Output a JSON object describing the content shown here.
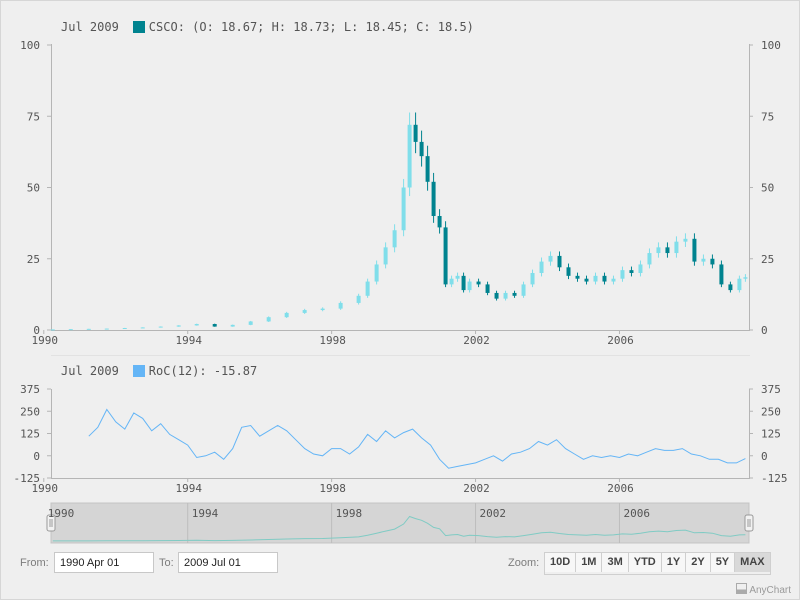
{
  "price_legend": {
    "date": "Jul 2009",
    "label": "CSCO: (O: 18.67; H: 18.73; L: 18.45; C: 18.5)",
    "color": "#00838f"
  },
  "roc_legend": {
    "date": "Jul 2009",
    "label": "RoC(12): -15.87",
    "color": "#64b5f6"
  },
  "scroller": {
    "labels": [
      "1990",
      "1994",
      "1998",
      "2002",
      "2006"
    ]
  },
  "range": {
    "from_label": "From:",
    "from_value": "1990 Apr 01",
    "to_label": "To:",
    "to_value": "2009 Jul 01"
  },
  "zoom": {
    "label": "Zoom:",
    "buttons": [
      "10D",
      "1M",
      "3M",
      "YTD",
      "1Y",
      "2Y",
      "5Y",
      "MAX"
    ],
    "active": "MAX"
  },
  "credits": "AnyChart",
  "chart_data": [
    {
      "type": "candlestick",
      "series": [
        {
          "name": "CSCO",
          "color_up": "#80deea",
          "color_down": "#00838f"
        }
      ],
      "x_ticks": [
        "1990",
        "1994",
        "1998",
        "2002",
        "2006"
      ],
      "y_ticks": [
        "0",
        "25",
        "50",
        "75",
        "100"
      ],
      "ylim": [
        0,
        100
      ],
      "x": [
        "1990-04",
        "1990-10",
        "1991-04",
        "1991-10",
        "1992-04",
        "1992-10",
        "1993-04",
        "1993-10",
        "1994-04",
        "1994-10",
        "1995-04",
        "1995-10",
        "1996-04",
        "1996-10",
        "1997-04",
        "1997-10",
        "1998-04",
        "1998-10",
        "1999-01",
        "1999-04",
        "1999-07",
        "1999-10",
        "2000-01",
        "2000-03",
        "2000-05",
        "2000-07",
        "2000-09",
        "2000-11",
        "2001-01",
        "2001-03",
        "2001-05",
        "2001-07",
        "2001-09",
        "2001-11",
        "2002-02",
        "2002-05",
        "2002-08",
        "2002-11",
        "2003-02",
        "2003-05",
        "2003-08",
        "2003-11",
        "2004-02",
        "2004-05",
        "2004-08",
        "2004-11",
        "2005-02",
        "2005-05",
        "2005-08",
        "2005-11",
        "2006-02",
        "2006-05",
        "2006-08",
        "2006-11",
        "2007-02",
        "2007-05",
        "2007-08",
        "2007-11",
        "2008-02",
        "2008-05",
        "2008-08",
        "2008-11",
        "2009-02",
        "2009-05",
        "2009-07"
      ],
      "close": [
        0.2,
        0.3,
        0.4,
        0.5,
        0.7,
        0.9,
        1.2,
        1.6,
        2.1,
        1.2,
        1.8,
        3.0,
        4.5,
        6.0,
        7.0,
        7.5,
        9.5,
        12,
        17,
        23,
        29,
        35,
        50,
        72,
        66,
        61,
        52,
        40,
        36,
        16,
        18,
        19,
        14,
        17,
        16,
        13,
        11,
        13,
        12,
        16,
        20,
        24,
        26,
        22,
        19,
        18,
        17,
        19,
        17,
        18,
        21,
        20,
        23,
        27,
        29,
        27,
        31,
        32,
        24,
        25,
        23,
        16,
        14,
        18,
        18.5
      ]
    },
    {
      "type": "line",
      "series": [
        {
          "name": "RoC(12)",
          "color": "#64b5f6"
        }
      ],
      "x_ticks": [
        "1990",
        "1994",
        "1998",
        "2002",
        "2006"
      ],
      "y_ticks": [
        "375",
        "250",
        "125",
        "0",
        "-125"
      ],
      "ylim": [
        -125,
        375
      ],
      "x": [
        "1991-04",
        "1991-07",
        "1991-10",
        "1992-01",
        "1992-04",
        "1992-07",
        "1992-10",
        "1993-01",
        "1993-04",
        "1993-07",
        "1993-10",
        "1994-01",
        "1994-04",
        "1994-07",
        "1994-10",
        "1995-01",
        "1995-04",
        "1995-07",
        "1995-10",
        "1996-01",
        "1996-04",
        "1996-07",
        "1996-10",
        "1997-01",
        "1997-04",
        "1997-07",
        "1997-10",
        "1998-01",
        "1998-04",
        "1998-07",
        "1998-10",
        "1999-01",
        "1999-04",
        "1999-07",
        "1999-10",
        "2000-01",
        "2000-04",
        "2000-07",
        "2000-10",
        "2001-01",
        "2001-04",
        "2001-07",
        "2001-10",
        "2002-01",
        "2002-04",
        "2002-07",
        "2002-10",
        "2003-01",
        "2003-04",
        "2003-07",
        "2003-10",
        "2004-01",
        "2004-04",
        "2004-07",
        "2004-10",
        "2005-01",
        "2005-04",
        "2005-07",
        "2005-10",
        "2006-01",
        "2006-04",
        "2006-07",
        "2006-10",
        "2007-01",
        "2007-04",
        "2007-07",
        "2007-10",
        "2008-01",
        "2008-04",
        "2008-07",
        "2008-10",
        "2009-01",
        "2009-04",
        "2009-07"
      ],
      "values": [
        110,
        160,
        260,
        190,
        150,
        240,
        210,
        140,
        180,
        120,
        90,
        60,
        -10,
        0,
        20,
        -20,
        40,
        160,
        170,
        110,
        140,
        170,
        140,
        90,
        40,
        10,
        0,
        40,
        40,
        10,
        50,
        120,
        80,
        140,
        100,
        130,
        150,
        100,
        60,
        -20,
        -70,
        -60,
        -50,
        -40,
        -20,
        0,
        -30,
        10,
        20,
        40,
        80,
        60,
        90,
        40,
        10,
        -20,
        0,
        -10,
        0,
        -10,
        10,
        0,
        20,
        40,
        30,
        30,
        40,
        10,
        0,
        -20,
        -20,
        -40,
        -40,
        -16
      ]
    }
  ]
}
